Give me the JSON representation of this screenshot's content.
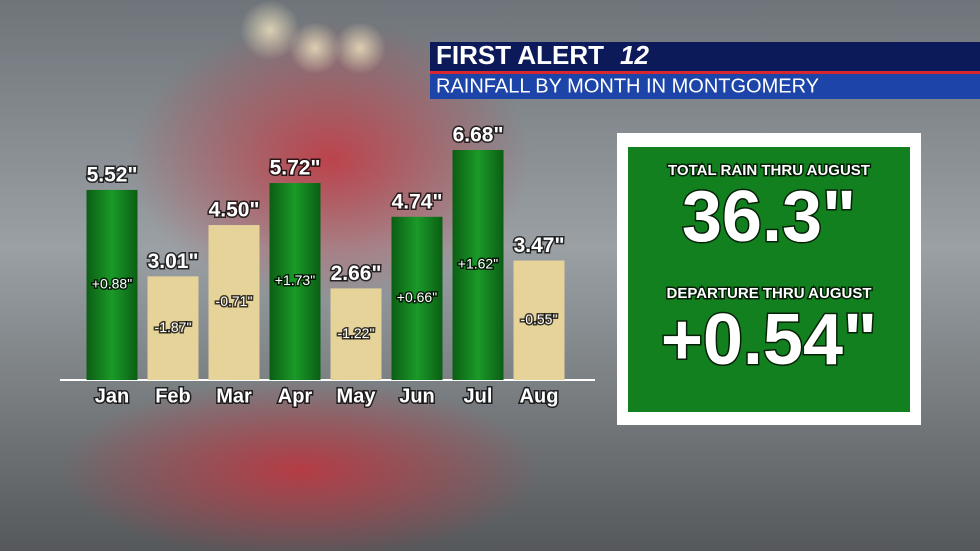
{
  "header": {
    "brand": "FIRST ALERT",
    "channel": "12",
    "title": "RAINFALL BY MONTH IN MONTGOMERY"
  },
  "chart_data": {
    "type": "bar",
    "categories": [
      "Jan",
      "Feb",
      "Mar",
      "Apr",
      "May",
      "Jun",
      "Jul",
      "Aug"
    ],
    "values": [
      5.52,
      3.01,
      4.5,
      5.72,
      2.66,
      4.74,
      6.68,
      3.47
    ],
    "value_labels": [
      "5.52\"",
      "3.01\"",
      "4.50\"",
      "5.72\"",
      "2.66\"",
      "4.74\"",
      "6.68\"",
      "3.47\""
    ],
    "departures": [
      0.88,
      -1.87,
      -0.71,
      1.73,
      -1.22,
      0.66,
      1.62,
      -0.55
    ],
    "departure_labels": [
      "+0.88\"",
      "-1.87\"",
      "-0.71\"",
      "+1.73\"",
      "-1.22\"",
      "+0.66\"",
      "+1.62\"",
      "-0.55\""
    ],
    "colors": [
      "#13801f",
      "#e6d39a",
      "#e6d39a",
      "#13801f",
      "#e6d39a",
      "#13801f",
      "#13801f",
      "#e6d39a"
    ]
  },
  "summary": {
    "total_label": "TOTAL RAIN THRU AUGUST",
    "total": 36.3,
    "total_value_label": "36.3\"",
    "departure_label": "DEPARTURE THRU AUGUST",
    "departure": 0.54,
    "departure_value_label": "+0.54\""
  }
}
